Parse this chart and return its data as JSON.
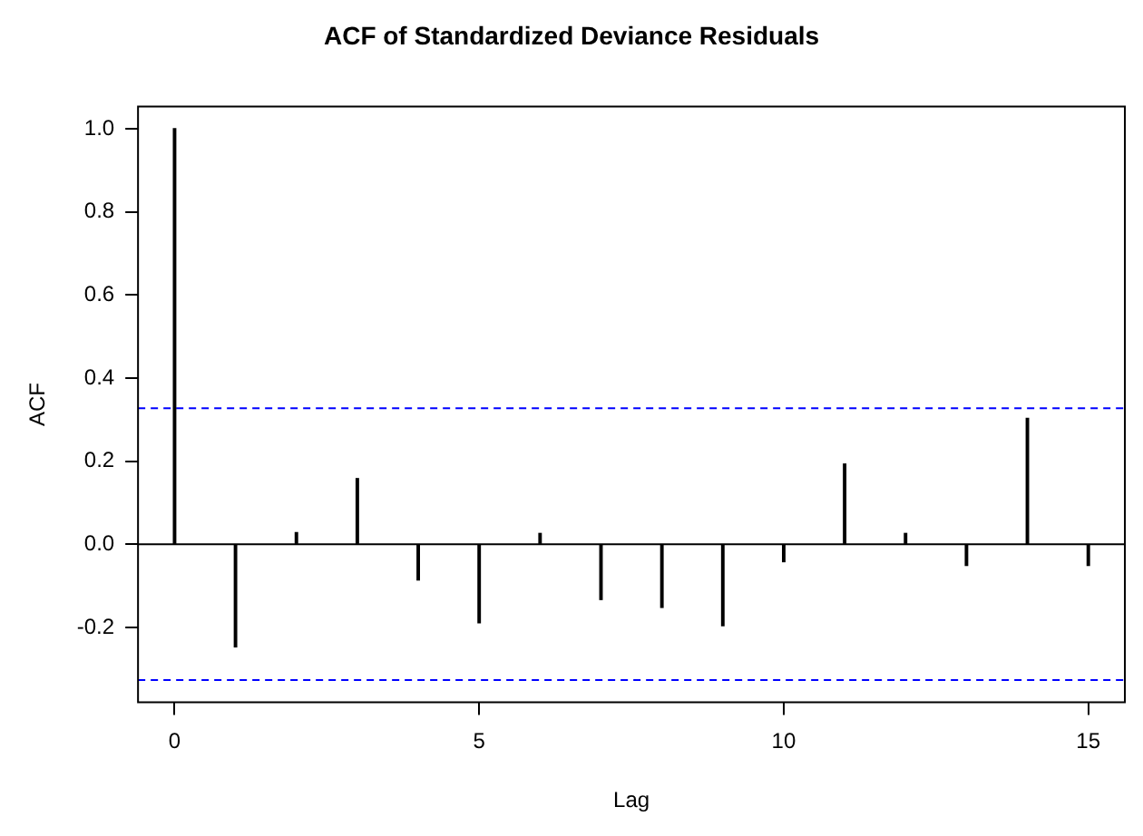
{
  "chart_data": {
    "type": "bar",
    "title": "ACF of Standardized Deviance Residuals",
    "xlabel": "Lag",
    "ylabel": "ACF",
    "x": [
      0,
      1,
      2,
      3,
      4,
      5,
      6,
      7,
      8,
      9,
      10,
      11,
      12,
      13,
      14,
      15
    ],
    "series": [
      {
        "color": "#000000",
        "values": [
          1.0,
          -0.247,
          0.028,
          0.158,
          -0.086,
          -0.189,
          0.026,
          -0.133,
          -0.152,
          -0.196,
          -0.042,
          0.193,
          0.026,
          -0.051,
          0.303,
          -0.051
        ]
      }
    ],
    "xlim": [
      -0.6,
      15.6
    ],
    "xticks": [
      0,
      5,
      10,
      15
    ],
    "ylim": [
      -0.38,
      1.053
    ],
    "yticks": [
      {
        "value": -0.2,
        "label": "-0.2"
      },
      {
        "value": 0,
        "label": "0.0"
      },
      {
        "value": 0.2,
        "label": "0.2"
      },
      {
        "value": 0.4,
        "label": "0.4"
      },
      {
        "value": 0.6,
        "label": "0.6"
      },
      {
        "value": 0.8,
        "label": "0.8"
      },
      {
        "value": 1,
        "label": "1.0"
      }
    ],
    "ref_lines": [
      {
        "axis": "y",
        "value": 0.327,
        "color": "#0000ff",
        "line_style": "dashed"
      },
      {
        "axis": "y",
        "value": -0.327,
        "color": "#0000ff",
        "line_style": "dashed"
      },
      {
        "axis": "y",
        "value": 0,
        "color": "#000000",
        "line_style": "solid"
      }
    ],
    "grid": false,
    "legend": false
  }
}
